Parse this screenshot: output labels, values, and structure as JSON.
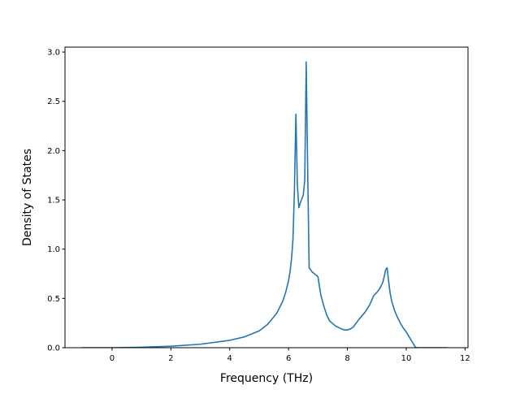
{
  "chart_data": {
    "type": "line",
    "xlabel": "Frequency (THz)",
    "ylabel": "Density of States",
    "xlim": [
      -1.6,
      12.1
    ],
    "ylim": [
      0.0,
      3.05
    ],
    "xticks": [
      "0",
      "2",
      "4",
      "6",
      "8",
      "10",
      "12"
    ],
    "yticks": [
      "0.0",
      "0.5",
      "1.0",
      "1.5",
      "2.0",
      "2.5",
      "3.0"
    ],
    "grid": false,
    "series": [
      {
        "color": "#1f77b4",
        "x": [
          -1.05,
          0.0,
          1.0,
          2.0,
          3.0,
          4.0,
          4.5,
          5.0,
          5.3,
          5.6,
          5.8,
          5.9,
          6.0,
          6.05,
          6.1,
          6.15,
          6.2,
          6.25,
          6.3,
          6.35,
          6.4,
          6.5,
          6.55,
          6.6,
          6.65,
          6.7,
          6.75,
          6.8,
          7.0,
          7.05,
          7.1,
          7.2,
          7.3,
          7.4,
          7.6,
          7.8,
          7.9,
          8.0,
          8.1,
          8.2,
          8.3,
          8.4,
          8.6,
          8.75,
          8.9,
          9.0,
          9.1,
          9.2,
          9.25,
          9.3,
          9.35,
          9.4,
          9.45,
          9.5,
          9.6,
          9.7,
          9.8,
          9.9,
          10.0,
          10.1,
          10.2,
          10.3,
          10.35,
          10.4,
          10.5,
          11.4
        ],
        "y": [
          0.0,
          0.0,
          0.005,
          0.015,
          0.035,
          0.075,
          0.11,
          0.17,
          0.24,
          0.35,
          0.47,
          0.56,
          0.68,
          0.77,
          0.9,
          1.1,
          1.6,
          2.37,
          1.65,
          1.42,
          1.47,
          1.55,
          1.7,
          2.9,
          1.8,
          0.81,
          0.79,
          0.77,
          0.72,
          0.62,
          0.53,
          0.42,
          0.33,
          0.27,
          0.22,
          0.19,
          0.18,
          0.18,
          0.19,
          0.21,
          0.25,
          0.29,
          0.36,
          0.43,
          0.53,
          0.56,
          0.6,
          0.66,
          0.72,
          0.79,
          0.81,
          0.68,
          0.56,
          0.48,
          0.38,
          0.31,
          0.25,
          0.2,
          0.16,
          0.11,
          0.06,
          0.01,
          0.0,
          0.0,
          0.0,
          0.0
        ]
      }
    ]
  }
}
